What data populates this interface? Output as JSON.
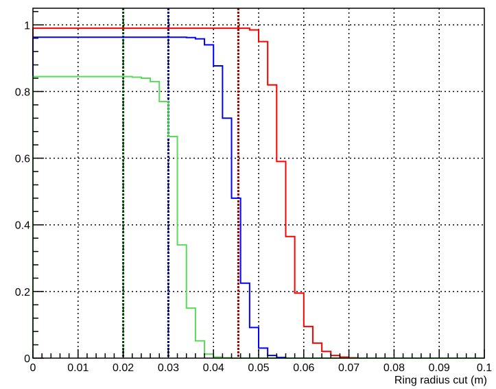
{
  "chart_data": {
    "type": "line",
    "style": "step",
    "title": "",
    "xlabel": "Ring radius cut (m)",
    "ylabel": "",
    "xlim": [
      0,
      0.1
    ],
    "ylim": [
      0,
      1.05
    ],
    "grid": true,
    "grid_style": "dotted",
    "x_ticks": [
      0,
      0.01,
      0.02,
      0.03,
      0.04,
      0.05,
      0.06,
      0.07,
      0.08,
      0.09,
      0.1
    ],
    "x_tick_labels": [
      "0",
      "0.01",
      "0.02",
      "0.03",
      "0.04",
      "0.05",
      "0.06",
      "0.07",
      "0.08",
      "0.09",
      "0.1"
    ],
    "y_ticks": [
      0,
      0.2,
      0.4,
      0.6,
      0.8,
      1
    ],
    "y_tick_labels": [
      "0",
      "0.2",
      "0.4",
      "0.6",
      "0.8",
      "1"
    ],
    "bin_width": 0.002,
    "series": [
      {
        "color": "#ff0000",
        "values": [
          0.99,
          0.99,
          0.99,
          0.99,
          0.99,
          0.99,
          0.99,
          0.99,
          0.99,
          0.99,
          0.99,
          0.99,
          0.99,
          0.99,
          0.99,
          0.99,
          0.99,
          0.99,
          0.99,
          0.99,
          0.99,
          0.99,
          0.99,
          0.99,
          0.985,
          0.95,
          0.82,
          0.59,
          0.365,
          0.195,
          0.095,
          0.045,
          0.02,
          0.008,
          0.003,
          0.001,
          0,
          0,
          0,
          0,
          0,
          0,
          0,
          0,
          0,
          0,
          0,
          0,
          0,
          0
        ]
      },
      {
        "color": "#0000ff",
        "values": [
          0.963,
          0.963,
          0.963,
          0.963,
          0.963,
          0.963,
          0.963,
          0.963,
          0.963,
          0.963,
          0.963,
          0.963,
          0.963,
          0.963,
          0.963,
          0.963,
          0.963,
          0.962,
          0.958,
          0.94,
          0.877,
          0.72,
          0.48,
          0.225,
          0.092,
          0.03,
          0.008,
          0.002,
          0,
          0,
          0,
          0,
          0,
          0,
          0,
          0,
          0,
          0,
          0,
          0,
          0,
          0,
          0,
          0,
          0,
          0,
          0,
          0,
          0,
          0
        ]
      },
      {
        "color": "#55dd55",
        "values": [
          0.845,
          0.845,
          0.845,
          0.845,
          0.845,
          0.845,
          0.845,
          0.845,
          0.845,
          0.845,
          0.845,
          0.843,
          0.84,
          0.83,
          0.77,
          0.665,
          0.34,
          0.15,
          0.052,
          0.012,
          0.003,
          0.001,
          0,
          0,
          0,
          0,
          0,
          0,
          0,
          0,
          0,
          0,
          0,
          0,
          0,
          0,
          0,
          0,
          0,
          0,
          0,
          0,
          0,
          0,
          0,
          0,
          0,
          0,
          0,
          0
        ]
      }
    ],
    "vertical_lines": [
      {
        "x": 0.02,
        "color": "#004400"
      },
      {
        "x": 0.03,
        "color": "#000080"
      },
      {
        "x": 0.0455,
        "color": "#990000"
      }
    ]
  }
}
